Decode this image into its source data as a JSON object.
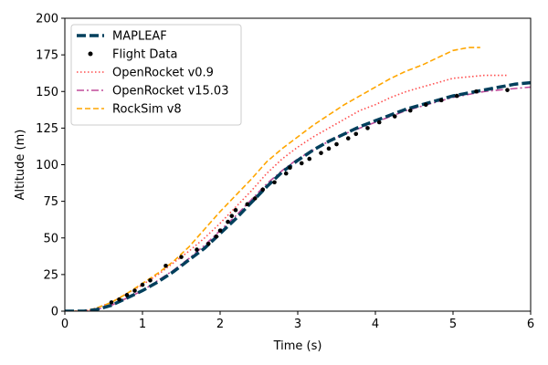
{
  "chart_data": {
    "type": "line",
    "title": "",
    "xlabel": "Time (s)",
    "ylabel": "Altitude (m)",
    "xlim": [
      0,
      6
    ],
    "ylim": [
      0,
      200
    ],
    "xticks": [
      0,
      1,
      2,
      3,
      4,
      5,
      6
    ],
    "yticks": [
      0,
      25,
      50,
      75,
      100,
      125,
      150,
      175,
      200
    ],
    "grid": false,
    "legend_position": "top-left",
    "series": [
      {
        "name": "MAPLEAF",
        "style": "dashed-thick",
        "color": "#003f5c",
        "x": [
          0,
          0.25,
          0.4,
          0.6,
          0.8,
          1.0,
          1.2,
          1.4,
          1.6,
          1.8,
          2.0,
          2.2,
          2.4,
          2.6,
          2.8,
          3.0,
          3.2,
          3.4,
          3.6,
          3.8,
          4.0,
          4.2,
          4.4,
          4.6,
          4.8,
          5.0,
          5.2,
          5.4,
          5.6,
          5.8,
          6.0
        ],
        "y": [
          0,
          0,
          1,
          4,
          9,
          14,
          20,
          27,
          35,
          43,
          53,
          63,
          74,
          85,
          95,
          103,
          110,
          116,
          121,
          126,
          130,
          134,
          138,
          141,
          144,
          147,
          149,
          151,
          153,
          155,
          156
        ]
      },
      {
        "name": "Flight Data",
        "style": "points",
        "color": "#000000",
        "x": [
          0.6,
          0.7,
          0.8,
          0.9,
          1.0,
          1.1,
          1.3,
          1.5,
          1.7,
          1.85,
          1.95,
          2.0,
          2.1,
          2.15,
          2.2,
          2.35,
          2.45,
          2.55,
          2.7,
          2.85,
          2.9,
          3.05,
          3.15,
          3.3,
          3.4,
          3.5,
          3.65,
          3.75,
          3.9,
          4.05,
          4.25,
          4.45,
          4.65,
          4.85,
          5.05,
          5.3,
          5.7
        ],
        "y": [
          6,
          8,
          11,
          14,
          18,
          21,
          31,
          37,
          42,
          46,
          51,
          55,
          61,
          65,
          69,
          73,
          77,
          83,
          88,
          94,
          98,
          101,
          104,
          108,
          111,
          114,
          118,
          121,
          125,
          129,
          133,
          137,
          141,
          144,
          147,
          150,
          151
        ]
      },
      {
        "name": "OpenRocket v0.9",
        "style": "dotted",
        "color": "#ff4d4d",
        "x": [
          0,
          0.25,
          0.4,
          0.6,
          0.8,
          1.0,
          1.2,
          1.4,
          1.6,
          1.8,
          2.0,
          2.2,
          2.4,
          2.6,
          2.8,
          3.0,
          3.2,
          3.4,
          3.6,
          3.8,
          4.0,
          4.2,
          4.4,
          4.6,
          4.8,
          5.0,
          5.2,
          5.4,
          5.6,
          5.7
        ],
        "y": [
          0,
          0,
          2,
          6,
          12,
          18,
          25,
          33,
          41,
          50,
          60,
          71,
          82,
          94,
          104,
          112,
          119,
          125,
          131,
          137,
          141,
          146,
          150,
          153,
          156,
          159,
          160,
          161,
          161,
          161
        ]
      },
      {
        "name": "OpenRocket v15.03",
        "style": "dashdot",
        "color": "#c04a9a",
        "x": [
          0,
          0.25,
          0.4,
          0.6,
          0.8,
          1.0,
          1.2,
          1.4,
          1.6,
          1.8,
          2.0,
          2.2,
          2.4,
          2.6,
          2.8,
          3.0,
          3.2,
          3.4,
          3.6,
          3.8,
          4.0,
          4.2,
          4.4,
          4.6,
          4.8,
          5.0,
          5.2,
          5.4,
          5.6,
          5.8,
          6.0
        ],
        "y": [
          0,
          0,
          1,
          4,
          9,
          14,
          21,
          28,
          36,
          45,
          55,
          65,
          76,
          87,
          96,
          104,
          110,
          116,
          121,
          125,
          129,
          133,
          137,
          140,
          143,
          146,
          148,
          150,
          151,
          152,
          153
        ]
      },
      {
        "name": "RockSim v8",
        "style": "dashed",
        "color": "#ffa600",
        "x": [
          0,
          0.25,
          0.4,
          0.6,
          0.8,
          1.0,
          1.2,
          1.4,
          1.6,
          1.8,
          2.0,
          2.2,
          2.4,
          2.6,
          2.8,
          3.0,
          3.2,
          3.4,
          3.6,
          3.8,
          4.0,
          4.2,
          4.4,
          4.6,
          4.8,
          5.0,
          5.2,
          5.35
        ],
        "y": [
          0,
          0,
          2,
          6,
          12,
          19,
          26,
          34,
          44,
          56,
          68,
          79,
          90,
          102,
          111,
          119,
          127,
          134,
          141,
          147,
          153,
          159,
          164,
          168,
          173,
          178,
          180,
          180
        ]
      }
    ]
  }
}
